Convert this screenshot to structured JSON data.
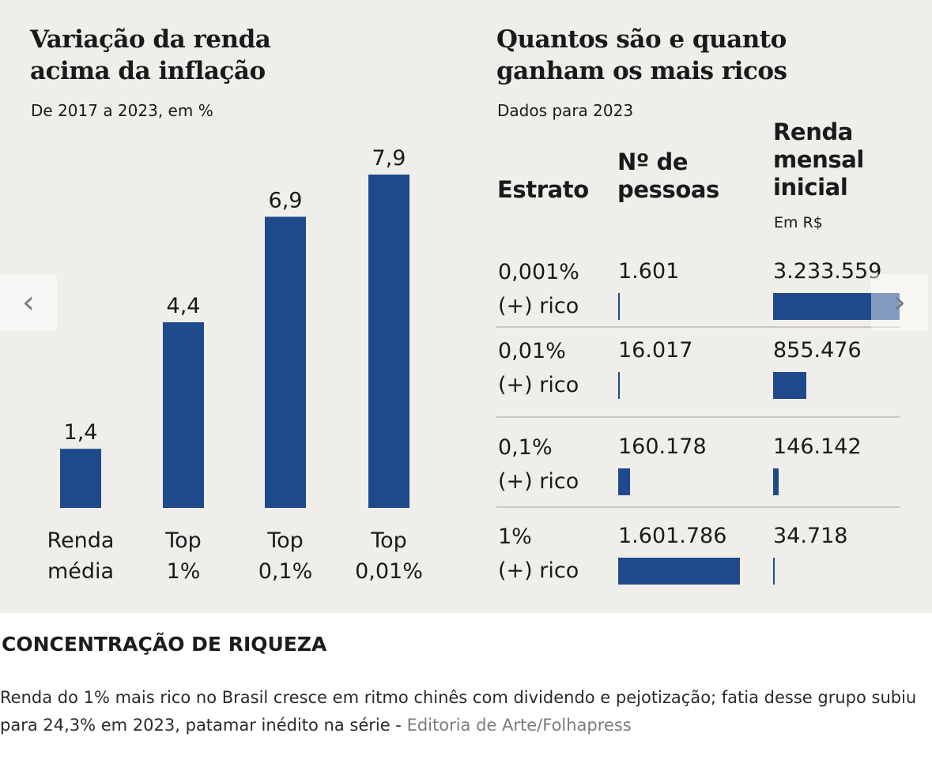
{
  "chart_data": [
    {
      "type": "bar",
      "title": "Variação da renda acima da inflação",
      "title_lines": [
        "Variação da renda",
        "acima da inflação"
      ],
      "subtitle": "De 2017 a 2023, em %",
      "categories": [
        [
          "Renda",
          "média"
        ],
        [
          "Top",
          "1%"
        ],
        [
          "Top",
          "0,1%"
        ],
        [
          "Top",
          "0,01%"
        ]
      ],
      "values": [
        1.4,
        4.4,
        6.9,
        7.9
      ],
      "value_labels": [
        "1,4",
        "4,4",
        "6,9",
        "7,9"
      ],
      "ylim": [
        0,
        7.9
      ],
      "grid": false,
      "color": "#1e4a8c"
    },
    {
      "type": "table",
      "title": "Quantos são e quanto ganham os mais ricos",
      "title_lines": [
        "Quantos são e quanto",
        "ganham os mais ricos"
      ],
      "subtitle": "Dados para 2023",
      "columns": [
        {
          "label_lines": [
            "Estrato"
          ]
        },
        {
          "label_lines": [
            "Nº de",
            "pessoas"
          ]
        },
        {
          "label_lines": [
            "Renda",
            "mensal",
            "inicial"
          ],
          "unit": "Em R$"
        }
      ],
      "rows": [
        {
          "stratum": [
            "0,001%",
            "(+) rico"
          ],
          "people": 1601,
          "people_label": "1.601",
          "income": 3233559,
          "income_label": "3.233.559"
        },
        {
          "stratum": [
            "0,01%",
            "(+) rico"
          ],
          "people": 16017,
          "people_label": "16.017",
          "income": 855476,
          "income_label": "855.476"
        },
        {
          "stratum": [
            "0,1%",
            "(+) rico"
          ],
          "people": 160178,
          "people_label": "160.178",
          "income": 146142,
          "income_label": "146.142"
        },
        {
          "stratum": [
            "1%",
            "(+) rico"
          ],
          "people": 1601786,
          "people_label": "1.601.786",
          "income": 34718,
          "income_label": "34.718"
        }
      ],
      "bar_color": "#1e4a8c"
    }
  ],
  "carousel": {
    "prev_icon": "chevron-left-icon",
    "next_icon": "chevron-right-icon",
    "prev_glyph": "‹",
    "next_glyph": "›"
  },
  "caption": {
    "title": "CONCENTRAÇÃO DE RIQUEZA",
    "text": "Renda do 1% mais rico no Brasil cresce em ritmo chinês com dividendo e pejotização; fatia desse grupo subiu para 24,3% em 2023, patamar inédito na série - ",
    "credit": "Editoria de Arte/Folhapress"
  }
}
